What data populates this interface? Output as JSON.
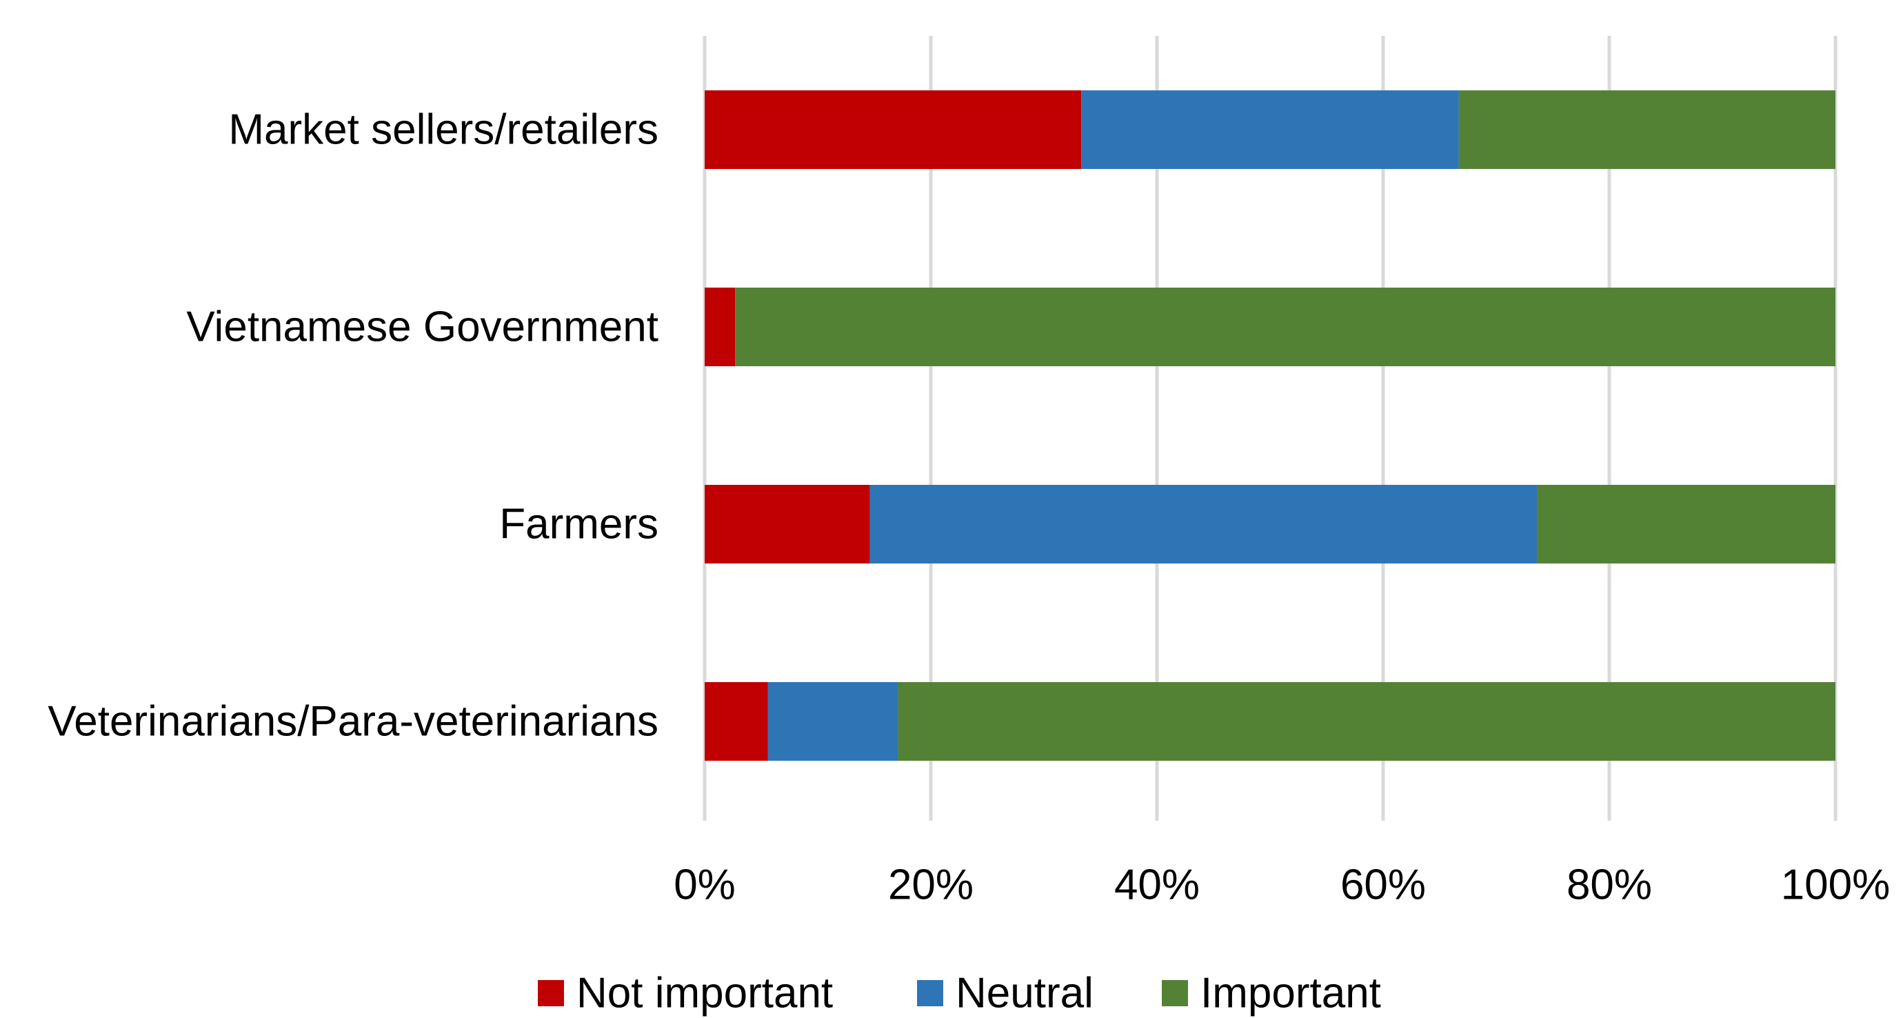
{
  "chart_data": {
    "type": "bar",
    "orientation": "horizontal",
    "stacked": "percent",
    "title": "",
    "xlabel": "",
    "ylabel": "",
    "categories": [
      "Market sellers/retailers",
      "Vietnamese Government",
      "Farmers",
      "Veterinarians/Para-veterinarians"
    ],
    "series": [
      {
        "name": "Not important",
        "color": "#c00000",
        "values": [
          33.3,
          2.7,
          14.6,
          5.6
        ]
      },
      {
        "name": "Neutral",
        "color": "#2e75b6",
        "values": [
          33.4,
          0,
          59.0,
          11.5
        ]
      },
      {
        "name": "Important",
        "color": "#548235",
        "values": [
          33.3,
          97.3,
          26.4,
          82.9
        ]
      }
    ],
    "xlim": [
      0,
      100
    ],
    "xticks": [
      "0%",
      "20%",
      "40%",
      "60%",
      "80%",
      "100%"
    ],
    "grid": true,
    "legend_position": "bottom"
  }
}
